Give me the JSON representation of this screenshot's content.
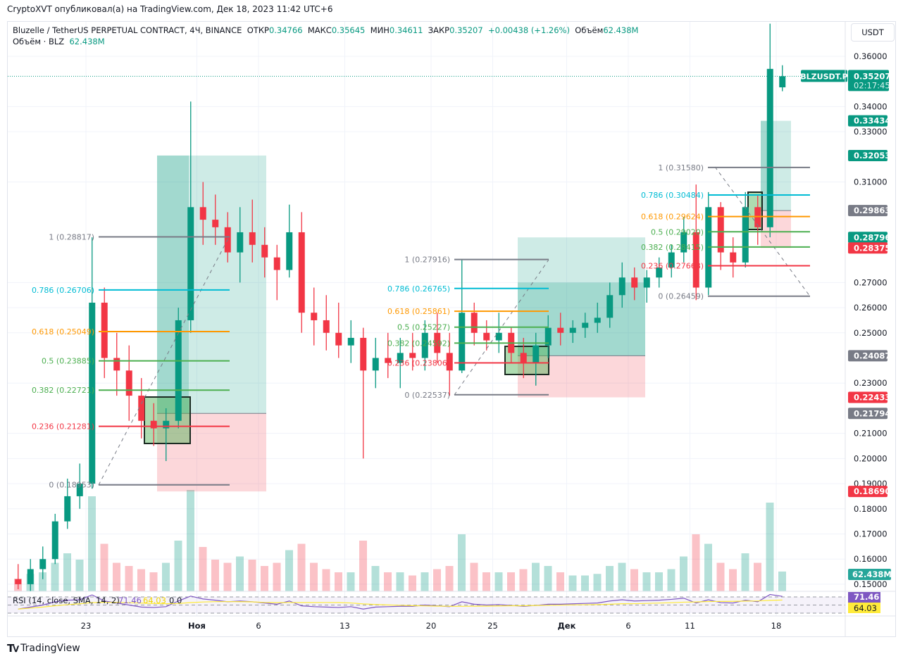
{
  "publisher_line": "CryptoXVT опубликовал(а) на TradingView.com, Дек 18, 2023 11:42 UTC+6",
  "legend": {
    "symbol": "Bluzelle / TetherUS PERPETUAL CONTRACT, 4Ч, BINANCE",
    "open_label": "ОТКР",
    "open": "0.34766",
    "high_label": "МАКС",
    "high": "0.35645",
    "low_label": "МИН",
    "low": "0.34611",
    "close_label": "ЗАКР",
    "close": "0.35207",
    "change": "+0.00438 (+1.26%)",
    "volume_label": "Объём",
    "volume": "62.438M",
    "volume_line_label": "Объём · BLZ",
    "volume_line_value": "62.438M"
  },
  "currency_button": "USDT",
  "brand": "TradingView",
  "colors": {
    "up": "#089981",
    "down": "#f23645",
    "fib_1": "#787b86",
    "fib_786": "#00bcd4",
    "fib_618": "#ff9800",
    "fib_5": "#4caf50",
    "fib_382": "#4caf50",
    "fib_236": "#f23645",
    "fib_0": "#787b86",
    "rsi": "#7e57c2",
    "rsi_sma": "#ffeb3b"
  },
  "chart_data": {
    "type": "candlestick",
    "symbol_tag": "BLZUSDT.P",
    "last_price": "0.35207",
    "countdown": "02:17:45",
    "ylim": [
      0.145,
      0.375
    ],
    "y_ticks": [
      "0.36000",
      "0.34000",
      "0.33000",
      "0.31000",
      "0.27000",
      "0.26000",
      "0.25000",
      "0.23000",
      "0.21000",
      "0.20000",
      "0.19000",
      "0.18000",
      "0.17000",
      "0.16000",
      "0.15000"
    ],
    "x_ticks": [
      {
        "date": "2023-10-23",
        "label": "23"
      },
      {
        "date": "2023-11-01",
        "label": "Ноя"
      },
      {
        "date": "2023-11-06",
        "label": "6"
      },
      {
        "date": "2023-11-13",
        "label": "13"
      },
      {
        "date": "2023-11-20",
        "label": "20"
      },
      {
        "date": "2023-11-25",
        "label": "25"
      },
      {
        "date": "2023-12-01",
        "label": "Дек"
      },
      {
        "date": "2023-12-06",
        "label": "6"
      },
      {
        "date": "2023-12-11",
        "label": "11"
      },
      {
        "date": "2023-12-18",
        "label": "18"
      }
    ],
    "start_date": "2023-10-17",
    "ohlc": [
      [
        0.152,
        0.158,
        0.148,
        0.15
      ],
      [
        0.15,
        0.16,
        0.147,
        0.156
      ],
      [
        0.156,
        0.165,
        0.152,
        0.16
      ],
      [
        0.16,
        0.178,
        0.158,
        0.175
      ],
      [
        0.175,
        0.192,
        0.172,
        0.185
      ],
      [
        0.185,
        0.198,
        0.18,
        0.19
      ],
      [
        0.19,
        0.288,
        0.188,
        0.262
      ],
      [
        0.262,
        0.268,
        0.232,
        0.24
      ],
      [
        0.24,
        0.25,
        0.225,
        0.235
      ],
      [
        0.235,
        0.245,
        0.215,
        0.225
      ],
      [
        0.225,
        0.232,
        0.208,
        0.215
      ],
      [
        0.215,
        0.222,
        0.205,
        0.212
      ],
      [
        0.212,
        0.22,
        0.199,
        0.215
      ],
      [
        0.215,
        0.26,
        0.212,
        0.255
      ],
      [
        0.255,
        0.342,
        0.25,
        0.3
      ],
      [
        0.3,
        0.31,
        0.285,
        0.295
      ],
      [
        0.295,
        0.305,
        0.285,
        0.292
      ],
      [
        0.292,
        0.298,
        0.278,
        0.282
      ],
      [
        0.282,
        0.3,
        0.27,
        0.29
      ],
      [
        0.29,
        0.303,
        0.278,
        0.285
      ],
      [
        0.285,
        0.292,
        0.272,
        0.28
      ],
      [
        0.28,
        0.285,
        0.263,
        0.275
      ],
      [
        0.275,
        0.301,
        0.272,
        0.29
      ],
      [
        0.29,
        0.298,
        0.25,
        0.258
      ],
      [
        0.258,
        0.268,
        0.245,
        0.255
      ],
      [
        0.255,
        0.265,
        0.243,
        0.25
      ],
      [
        0.25,
        0.262,
        0.24,
        0.245
      ],
      [
        0.245,
        0.255,
        0.238,
        0.248
      ],
      [
        0.248,
        0.252,
        0.2,
        0.235
      ],
      [
        0.235,
        0.248,
        0.228,
        0.24
      ],
      [
        0.24,
        0.25,
        0.232,
        0.238
      ],
      [
        0.238,
        0.248,
        0.228,
        0.242
      ],
      [
        0.242,
        0.25,
        0.235,
        0.24
      ],
      [
        0.24,
        0.255,
        0.235,
        0.25
      ],
      [
        0.25,
        0.258,
        0.238,
        0.242
      ],
      [
        0.242,
        0.25,
        0.225,
        0.235
      ],
      [
        0.235,
        0.279,
        0.234,
        0.258
      ],
      [
        0.258,
        0.262,
        0.245,
        0.25
      ],
      [
        0.25,
        0.255,
        0.243,
        0.247
      ],
      [
        0.247,
        0.258,
        0.242,
        0.25
      ],
      [
        0.25,
        0.252,
        0.238,
        0.242
      ],
      [
        0.242,
        0.248,
        0.232,
        0.238
      ],
      [
        0.238,
        0.25,
        0.229,
        0.245
      ],
      [
        0.245,
        0.257,
        0.24,
        0.252
      ],
      [
        0.252,
        0.258,
        0.245,
        0.25
      ],
      [
        0.25,
        0.255,
        0.246,
        0.252
      ],
      [
        0.252,
        0.258,
        0.248,
        0.254
      ],
      [
        0.254,
        0.262,
        0.25,
        0.256
      ],
      [
        0.256,
        0.27,
        0.252,
        0.265
      ],
      [
        0.265,
        0.278,
        0.26,
        0.272
      ],
      [
        0.272,
        0.276,
        0.263,
        0.268
      ],
      [
        0.268,
        0.275,
        0.262,
        0.272
      ],
      [
        0.272,
        0.28,
        0.268,
        0.276
      ],
      [
        0.276,
        0.285,
        0.272,
        0.282
      ],
      [
        0.282,
        0.296,
        0.278,
        0.29
      ],
      [
        0.29,
        0.309,
        0.263,
        0.268
      ],
      [
        0.268,
        0.306,
        0.265,
        0.3
      ],
      [
        0.3,
        0.302,
        0.275,
        0.282
      ],
      [
        0.282,
        0.288,
        0.272,
        0.278
      ],
      [
        0.278,
        0.306,
        0.276,
        0.3
      ],
      [
        0.3,
        0.305,
        0.285,
        0.292
      ],
      [
        0.292,
        0.373,
        0.288,
        0.355
      ],
      [
        0.34766,
        0.35645,
        0.34611,
        0.35207
      ]
    ],
    "volume_M": [
      40,
      55,
      60,
      90,
      120,
      100,
      300,
      150,
      90,
      80,
      70,
      60,
      90,
      160,
      320,
      140,
      100,
      90,
      110,
      100,
      80,
      90,
      130,
      150,
      90,
      70,
      60,
      60,
      160,
      80,
      60,
      60,
      50,
      60,
      70,
      80,
      180,
      90,
      60,
      60,
      60,
      70,
      90,
      80,
      60,
      50,
      50,
      55,
      80,
      90,
      70,
      60,
      60,
      70,
      110,
      180,
      150,
      90,
      70,
      120,
      90,
      280,
      62.438
    ],
    "rsi_label": "RSI (14, close, SMA, 14, 2)",
    "rsi_value": "71.46",
    "rsi_sma_value": "64.03",
    "rsi_extra": [
      "0",
      "0"
    ],
    "rsi": [
      40,
      45,
      50,
      58,
      62,
      63,
      75,
      60,
      55,
      50,
      45,
      44,
      46,
      60,
      72,
      65,
      62,
      58,
      60,
      58,
      55,
      52,
      60,
      48,
      46,
      45,
      44,
      46,
      40,
      45,
      46,
      47,
      47,
      50,
      48,
      46,
      58,
      52,
      50,
      51,
      49,
      47,
      49,
      52,
      52,
      53,
      54,
      55,
      60,
      63,
      60,
      61,
      62,
      64,
      67,
      55,
      63,
      56,
      55,
      62,
      58,
      76,
      71.46
    ],
    "fibs": [
      {
        "levels": [
          {
            "ratio": "1",
            "value": "0.28817"
          },
          {
            "ratio": "0.786",
            "value": "0.26706"
          },
          {
            "ratio": "0.618",
            "value": "0.25049"
          },
          {
            "ratio": "0.5",
            "value": "0.23885"
          },
          {
            "ratio": "0.382",
            "value": "0.22721"
          },
          {
            "ratio": "0.236",
            "value": "0.21281"
          },
          {
            "ratio": "0",
            "value": "0.18953"
          }
        ]
      },
      {
        "levels": [
          {
            "ratio": "1",
            "value": "0.27916"
          },
          {
            "ratio": "0.786",
            "value": "0.26765"
          },
          {
            "ratio": "0.618",
            "value": "0.25861"
          },
          {
            "ratio": "0.5",
            "value": "0.25227"
          },
          {
            "ratio": "0.382",
            "value": "0.24592"
          },
          {
            "ratio": "0.236",
            "value": "0.23806"
          },
          {
            "ratio": "0",
            "value": "0.22537"
          }
        ]
      },
      {
        "levels": [
          {
            "ratio": "1",
            "value": "0.31580"
          },
          {
            "ratio": "0.786",
            "value": "0.30484"
          },
          {
            "ratio": "0.618",
            "value": "0.29624"
          },
          {
            "ratio": "0.5",
            "value": "0.29020"
          },
          {
            "ratio": "0.382",
            "value": "0.28415"
          },
          {
            "ratio": "0.236",
            "value": "0.27668"
          },
          {
            "ratio": "0",
            "value": "0.26459"
          }
        ]
      }
    ],
    "positions": [
      {
        "type": "long",
        "target": "0.32053",
        "entry": "0.21794",
        "stop": "0.18690"
      },
      {
        "type": "long",
        "target": "0.28796",
        "entry": "0.24087",
        "stop": "0.22433"
      },
      {
        "type": "long",
        "target": "0.33434",
        "entry": "0.29863",
        "stop": "0.28375"
      }
    ],
    "axis_labels": [
      {
        "value": "0.33434",
        "color": "#089981"
      },
      {
        "value": "0.32053",
        "color": "#089981"
      },
      {
        "value": "0.29863",
        "color": "#787b86"
      },
      {
        "value": "0.28796",
        "color": "#089981"
      },
      {
        "value": "0.28375",
        "color": "#f23645"
      },
      {
        "value": "0.24087",
        "color": "#787b86"
      },
      {
        "value": "0.22433",
        "color": "#f23645"
      },
      {
        "value": "0.21794",
        "color": "#787b86"
      },
      {
        "value": "0.18690",
        "color": "#f23645"
      }
    ]
  }
}
